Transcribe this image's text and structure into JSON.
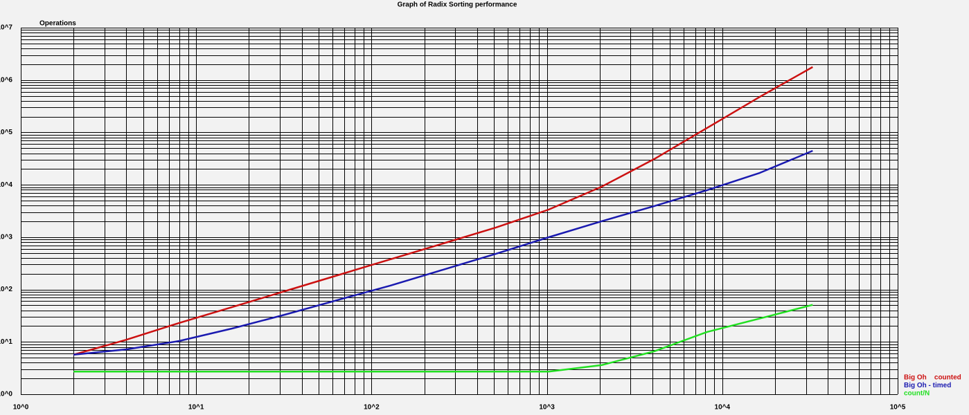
{
  "chart_data": {
    "type": "line",
    "title": "Graph of Radix Sorting performance",
    "y_label": "Operations",
    "log_x": true,
    "log_y": true,
    "grid": true,
    "legend": "lower right",
    "xlim": [
      1,
      100000
    ],
    "ylim": [
      1,
      10000000
    ],
    "xticks": [
      {
        "value": 1,
        "label": "10^0"
      },
      {
        "value": 10,
        "label": "10^1"
      },
      {
        "value": 100,
        "label": "10^2"
      },
      {
        "value": 1000,
        "label": "10^3"
      },
      {
        "value": 10000,
        "label": "10^4"
      },
      {
        "value": 100000,
        "label": "10^5"
      }
    ],
    "yticks": [
      {
        "value": 1,
        "label": "10^0"
      },
      {
        "value": 10,
        "label": "10^1"
      },
      {
        "value": 100,
        "label": "10^2"
      },
      {
        "value": 1000,
        "label": "10^3"
      },
      {
        "value": 10000,
        "label": "10^4"
      },
      {
        "value": 100000,
        "label": "10^5"
      },
      {
        "value": 1000000,
        "label": "10^6"
      },
      {
        "value": 10000000,
        "label": "10^7"
      }
    ],
    "x": [
      2,
      4,
      8,
      16,
      32,
      64,
      128,
      256,
      512,
      1024,
      2048,
      4096,
      8192,
      16384,
      32768
    ],
    "series": [
      {
        "name": "Big Oh    counted",
        "color": "#cc1111",
        "values": [
          5.7,
          11,
          23,
          46,
          93,
          187,
          377,
          758,
          1527,
          3365,
          9180,
          31000,
          122000,
          479000,
          1770000
        ]
      },
      {
        "name": "Big Oh - timed",
        "color": "#1a1ab0",
        "values": [
          5.7,
          7.2,
          10.4,
          18,
          33,
          63,
          119,
          239,
          481,
          997,
          2009,
          3920,
          7890,
          16900,
          44600
        ]
      },
      {
        "name": "count/N",
        "color": "#22e022",
        "values": [
          2.7,
          2.7,
          2.7,
          2.7,
          2.7,
          2.7,
          2.7,
          2.7,
          2.7,
          2.7,
          3.6,
          6.6,
          15.5,
          28,
          51
        ]
      }
    ]
  }
}
